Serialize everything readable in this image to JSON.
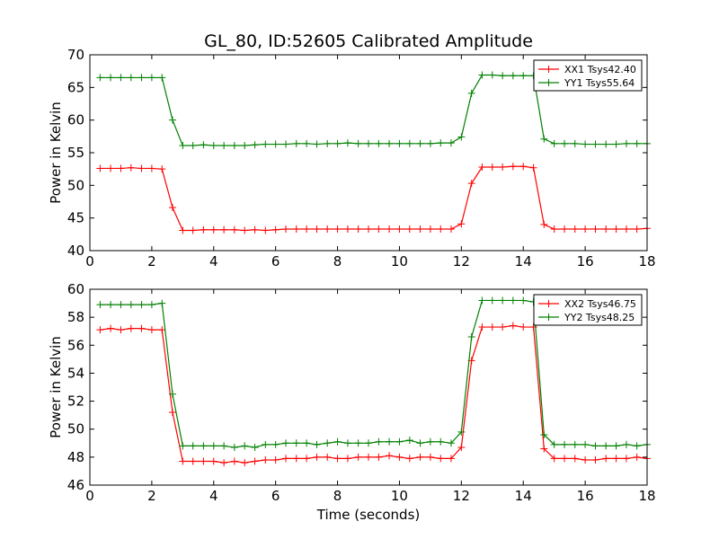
{
  "title": "GL_80, ID:52605 Calibrated Amplitude",
  "chart_data": [
    {
      "type": "line",
      "title": "GL_80, ID:52605 Calibrated Amplitude",
      "xlabel": "",
      "ylabel": "Power in Kelvin",
      "xlim": [
        0,
        18
      ],
      "ylim": [
        40,
        70
      ],
      "xticks": [
        0,
        2,
        4,
        6,
        8,
        10,
        12,
        14,
        16,
        18
      ],
      "yticks": [
        40,
        45,
        50,
        55,
        60,
        65,
        70
      ],
      "grid": false,
      "legend_position": "top-right",
      "x": [
        0.33,
        0.67,
        1.0,
        1.33,
        1.67,
        2.0,
        2.33,
        2.67,
        3.0,
        3.33,
        3.67,
        4.0,
        4.33,
        4.67,
        5.0,
        5.33,
        5.67,
        6.0,
        6.33,
        6.67,
        7.0,
        7.33,
        7.67,
        8.0,
        8.33,
        8.67,
        9.0,
        9.33,
        9.67,
        10.0,
        10.33,
        10.67,
        11.0,
        11.33,
        11.67,
        12.0,
        12.33,
        12.67,
        13.0,
        13.33,
        13.67,
        14.0,
        14.33,
        14.67,
        15.0,
        15.33,
        15.67,
        16.0,
        16.33,
        16.67,
        17.0,
        17.33,
        17.67,
        18.0
      ],
      "series": [
        {
          "name": "XX1 Tsys42.40",
          "color": "#ff0000",
          "values": [
            52.6,
            52.6,
            52.6,
            52.7,
            52.6,
            52.6,
            52.5,
            46.6,
            43.1,
            43.1,
            43.2,
            43.2,
            43.2,
            43.2,
            43.1,
            43.2,
            43.1,
            43.2,
            43.3,
            43.3,
            43.3,
            43.3,
            43.3,
            43.3,
            43.3,
            43.3,
            43.3,
            43.3,
            43.3,
            43.3,
            43.3,
            43.3,
            43.3,
            43.3,
            43.3,
            44.1,
            50.3,
            52.8,
            52.8,
            52.8,
            52.9,
            52.9,
            52.7,
            44.0,
            43.3,
            43.3,
            43.3,
            43.3,
            43.3,
            43.3,
            43.3,
            43.3,
            43.3,
            43.4
          ]
        },
        {
          "name": "YY1 Tsys55.64",
          "color": "#008000",
          "values": [
            66.5,
            66.5,
            66.5,
            66.5,
            66.5,
            66.5,
            66.5,
            60.0,
            56.1,
            56.1,
            56.2,
            56.1,
            56.1,
            56.1,
            56.1,
            56.2,
            56.3,
            56.3,
            56.3,
            56.4,
            56.4,
            56.3,
            56.4,
            56.4,
            56.5,
            56.4,
            56.4,
            56.4,
            56.4,
            56.4,
            56.4,
            56.4,
            56.4,
            56.5,
            56.5,
            57.4,
            64.1,
            66.9,
            66.9,
            66.8,
            66.8,
            66.8,
            66.8,
            57.1,
            56.4,
            56.4,
            56.4,
            56.3,
            56.3,
            56.3,
            56.3,
            56.4,
            56.4,
            56.4
          ]
        }
      ]
    },
    {
      "type": "line",
      "title": "",
      "xlabel": "Time (seconds)",
      "ylabel": "Power in Kelvin",
      "xlim": [
        0,
        18
      ],
      "ylim": [
        46,
        60
      ],
      "xticks": [
        0,
        2,
        4,
        6,
        8,
        10,
        12,
        14,
        16,
        18
      ],
      "yticks": [
        46,
        48,
        50,
        52,
        54,
        56,
        58,
        60
      ],
      "grid": false,
      "legend_position": "top-right",
      "x": [
        0.33,
        0.67,
        1.0,
        1.33,
        1.67,
        2.0,
        2.33,
        2.67,
        3.0,
        3.33,
        3.67,
        4.0,
        4.33,
        4.67,
        5.0,
        5.33,
        5.67,
        6.0,
        6.33,
        6.67,
        7.0,
        7.33,
        7.67,
        8.0,
        8.33,
        8.67,
        9.0,
        9.33,
        9.67,
        10.0,
        10.33,
        10.67,
        11.0,
        11.33,
        11.67,
        12.0,
        12.33,
        12.67,
        13.0,
        13.33,
        13.67,
        14.0,
        14.33,
        14.67,
        15.0,
        15.33,
        15.67,
        16.0,
        16.33,
        16.67,
        17.0,
        17.33,
        17.67,
        18.0
      ],
      "series": [
        {
          "name": "XX2 Tsys46.75",
          "color": "#ff0000",
          "values": [
            57.1,
            57.2,
            57.1,
            57.2,
            57.2,
            57.1,
            57.1,
            51.2,
            47.7,
            47.7,
            47.7,
            47.7,
            47.6,
            47.7,
            47.6,
            47.7,
            47.8,
            47.8,
            47.9,
            47.9,
            47.9,
            48.0,
            48.0,
            47.9,
            47.9,
            48.0,
            48.0,
            48.0,
            48.1,
            48.0,
            47.9,
            48.0,
            48.0,
            47.9,
            47.9,
            48.7,
            54.9,
            57.3,
            57.3,
            57.3,
            57.4,
            57.3,
            57.3,
            48.6,
            47.9,
            47.9,
            47.9,
            47.8,
            47.8,
            47.9,
            47.9,
            47.9,
            48.0,
            47.9
          ]
        },
        {
          "name": "YY2 Tsys48.25",
          "color": "#008000",
          "values": [
            58.9,
            58.9,
            58.9,
            58.9,
            58.9,
            58.9,
            59.0,
            52.5,
            48.8,
            48.8,
            48.8,
            48.8,
            48.8,
            48.7,
            48.8,
            48.7,
            48.9,
            48.9,
            49.0,
            49.0,
            49.0,
            48.9,
            49.0,
            49.1,
            49.0,
            49.0,
            49.0,
            49.1,
            49.1,
            49.1,
            49.2,
            49.0,
            49.1,
            49.1,
            49.0,
            49.8,
            56.6,
            59.2,
            59.2,
            59.2,
            59.2,
            59.2,
            59.1,
            49.6,
            48.9,
            48.9,
            48.9,
            48.9,
            48.8,
            48.8,
            48.8,
            48.9,
            48.8,
            48.9
          ]
        }
      ]
    }
  ]
}
